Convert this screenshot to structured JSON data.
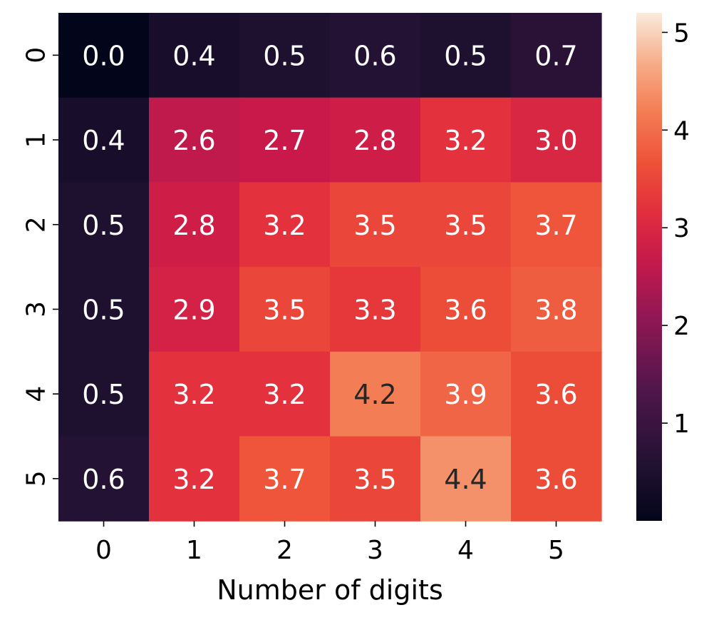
{
  "chart_data": {
    "type": "heatmap",
    "title": "",
    "xlabel": "Number of digits",
    "ylabel": "",
    "x_ticks": [
      "0",
      "1",
      "2",
      "3",
      "4",
      "5"
    ],
    "y_ticks": [
      "0",
      "1",
      "2",
      "3",
      "4",
      "5"
    ],
    "values": [
      [
        0.0,
        0.4,
        0.5,
        0.6,
        0.5,
        0.7
      ],
      [
        0.4,
        2.6,
        2.7,
        2.8,
        3.2,
        3.0
      ],
      [
        0.5,
        2.8,
        3.2,
        3.5,
        3.5,
        3.7
      ],
      [
        0.5,
        2.9,
        3.5,
        3.3,
        3.6,
        3.8
      ],
      [
        0.5,
        3.2,
        3.2,
        4.2,
        3.9,
        3.6
      ],
      [
        0.6,
        3.2,
        3.7,
        3.5,
        4.4,
        3.6
      ]
    ],
    "cell_labels": [
      [
        "0.0",
        "0.4",
        "0.5",
        "0.6",
        "0.5",
        "0.7"
      ],
      [
        "0.4",
        "2.6",
        "2.7",
        "2.8",
        "3.2",
        "3.0"
      ],
      [
        "0.5",
        "2.8",
        "3.2",
        "3.5",
        "3.5",
        "3.7"
      ],
      [
        "0.5",
        "2.9",
        "3.5",
        "3.3",
        "3.6",
        "3.8"
      ],
      [
        "0.5",
        "3.2",
        "3.2",
        "4.2",
        "3.9",
        "3.6"
      ],
      [
        "0.6",
        "3.2",
        "3.7",
        "3.5",
        "4.4",
        "3.6"
      ]
    ],
    "colormap": "rocket",
    "colorbar": {
      "vmin": 0.0,
      "vmax": 5.2,
      "ticks": [
        1,
        2,
        3,
        4,
        5
      ],
      "tick_labels": [
        "1",
        "2",
        "3",
        "4",
        "5"
      ]
    },
    "colors": {
      "text_light": "#ffffff",
      "text_dark": "#262626"
    }
  }
}
